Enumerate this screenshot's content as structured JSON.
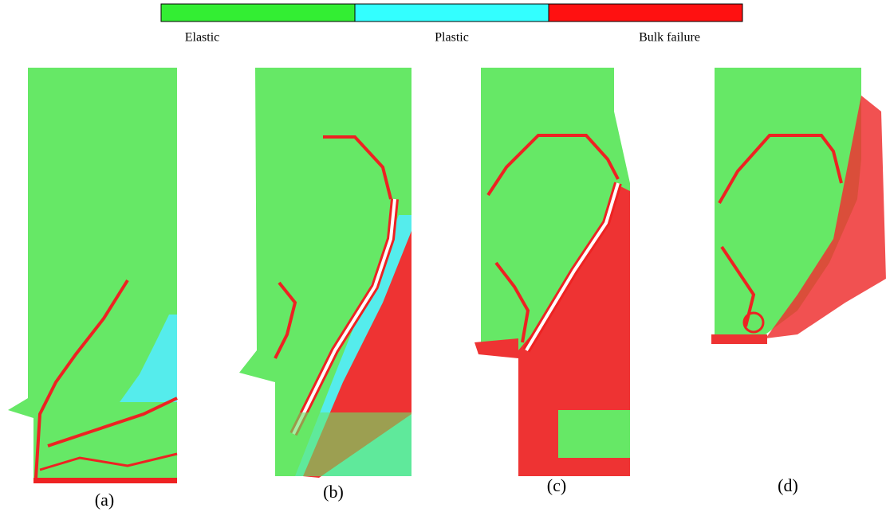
{
  "legend": [
    {
      "label": "Elastic",
      "color": "#33ee33"
    },
    {
      "label": "Plastic",
      "color": "#33ffff"
    },
    {
      "label": "Bulk failure",
      "color": "#ff1111"
    }
  ],
  "panels": [
    {
      "caption": "(a)"
    },
    {
      "caption": "(b)"
    },
    {
      "caption": "(c)"
    },
    {
      "caption": "(d)"
    }
  ]
}
